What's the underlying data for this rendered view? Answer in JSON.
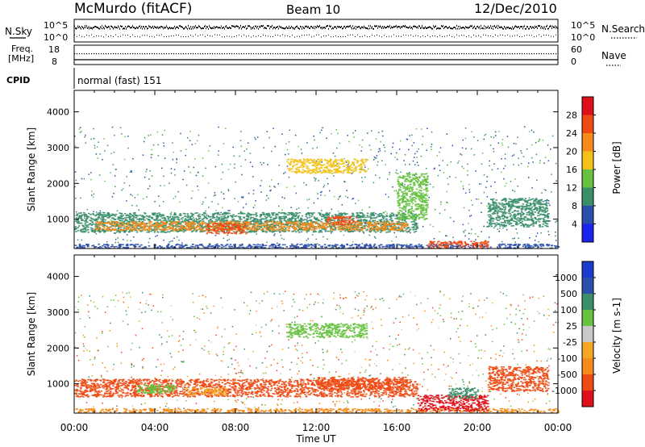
{
  "header": {
    "site": "McMurdo (fitACF)",
    "beam": "Beam 10",
    "date": "12/Dec/2010"
  },
  "top_panels": {
    "nsky_label": "N.Sky",
    "nsky_ticks": [
      "10^5",
      "10^0"
    ],
    "nsearch_label": "N.Search",
    "nsearch_ticks": [
      "10^5",
      "10^0"
    ],
    "freq_label_1": "Freq.",
    "freq_label_2": "[MHz]",
    "freq_ticks": [
      "18",
      "8"
    ],
    "nave_label": "Nave",
    "nave_ticks": [
      "60",
      "0"
    ],
    "cpid_label": "CPID",
    "cpid_text": "normal (fast) 151"
  },
  "colors": {
    "power": [
      "#1a22ee",
      "#2a4faa",
      "#3a8e6a",
      "#66c240",
      "#f2c21a",
      "#f58b1a",
      "#f04a14",
      "#e0101a"
    ],
    "velocity": [
      "#e0101a",
      "#f04a14",
      "#f58b1a",
      "#f5a623",
      "#c9c9c9",
      "#66c240",
      "#3a8e6a",
      "#2a4faa",
      "#1a3ccc"
    ]
  },
  "chart_data": [
    {
      "type": "heatmap",
      "name": "power",
      "xlabel": "",
      "ylabel": "Slant Range [km]",
      "xlim": [
        0,
        24
      ],
      "ylim": [
        180,
        4600
      ],
      "xticks": [
        "00:00",
        "04:00",
        "08:00",
        "12:00",
        "16:00",
        "20:00",
        "00:00"
      ],
      "yticks": [
        1000,
        2000,
        3000,
        4000
      ],
      "colorbar_label": "Power [dB]",
      "colorbar_ticks": [
        "4",
        "8",
        "12",
        "16",
        "20",
        "24",
        "28"
      ],
      "bands": [
        {
          "x": [
            0,
            24
          ],
          "y": [
            200,
            320
          ],
          "v": 6
        },
        {
          "x": [
            0,
            17
          ],
          "y": [
            650,
            1200
          ],
          "v": 8
        },
        {
          "x": [
            1,
            16.5
          ],
          "y": [
            700,
            950
          ],
          "v": 20
        },
        {
          "x": [
            6.5,
            8.5
          ],
          "y": [
            600,
            900
          ],
          "v": 27
        },
        {
          "x": [
            10.5,
            14.5
          ],
          "y": [
            2300,
            2700
          ],
          "v": 16
        },
        {
          "x": [
            12.5,
            14
          ],
          "y": [
            850,
            1100
          ],
          "v": 26
        },
        {
          "x": [
            17.5,
            20.5
          ],
          "y": [
            200,
            400
          ],
          "v": 26
        },
        {
          "x": [
            16,
            17.5
          ],
          "y": [
            1000,
            2300
          ],
          "v": 13
        },
        {
          "x": [
            20.5,
            23.5
          ],
          "y": [
            800,
            1600
          ],
          "v": 11
        }
      ]
    },
    {
      "type": "heatmap",
      "name": "velocity",
      "xlabel": "Time UT",
      "ylabel": "Slant Range [km]",
      "xlim": [
        0,
        24
      ],
      "ylim": [
        180,
        4600
      ],
      "xticks": [
        "00:00",
        "04:00",
        "08:00",
        "12:00",
        "16:00",
        "20:00",
        "00:00"
      ],
      "yticks": [
        1000,
        2000,
        3000,
        4000
      ],
      "colorbar_label": "Velocity [m s-1]",
      "colorbar_ticks": [
        "1000",
        "500",
        "100",
        "25",
        "-25",
        "-100",
        "-500",
        "-1000"
      ],
      "bands": [
        {
          "x": [
            0,
            24
          ],
          "y": [
            200,
            320
          ],
          "v": -80
        },
        {
          "x": [
            0,
            17
          ],
          "y": [
            650,
            1150
          ],
          "v": -150
        },
        {
          "x": [
            3,
            5
          ],
          "y": [
            750,
            1000
          ],
          "v": 60
        },
        {
          "x": [
            5.5,
            7.5
          ],
          "y": [
            700,
            900
          ],
          "v": 0
        },
        {
          "x": [
            10.5,
            14.5
          ],
          "y": [
            2300,
            2700
          ],
          "v": 40
        },
        {
          "x": [
            12,
            16.5
          ],
          "y": [
            850,
            1200
          ],
          "v": -300
        },
        {
          "x": [
            17,
            20.5
          ],
          "y": [
            250,
            700
          ],
          "v": -500
        },
        {
          "x": [
            18.5,
            20
          ],
          "y": [
            600,
            900
          ],
          "v": 200
        },
        {
          "x": [
            20.5,
            23.5
          ],
          "y": [
            800,
            1500
          ],
          "v": -120
        }
      ]
    }
  ]
}
